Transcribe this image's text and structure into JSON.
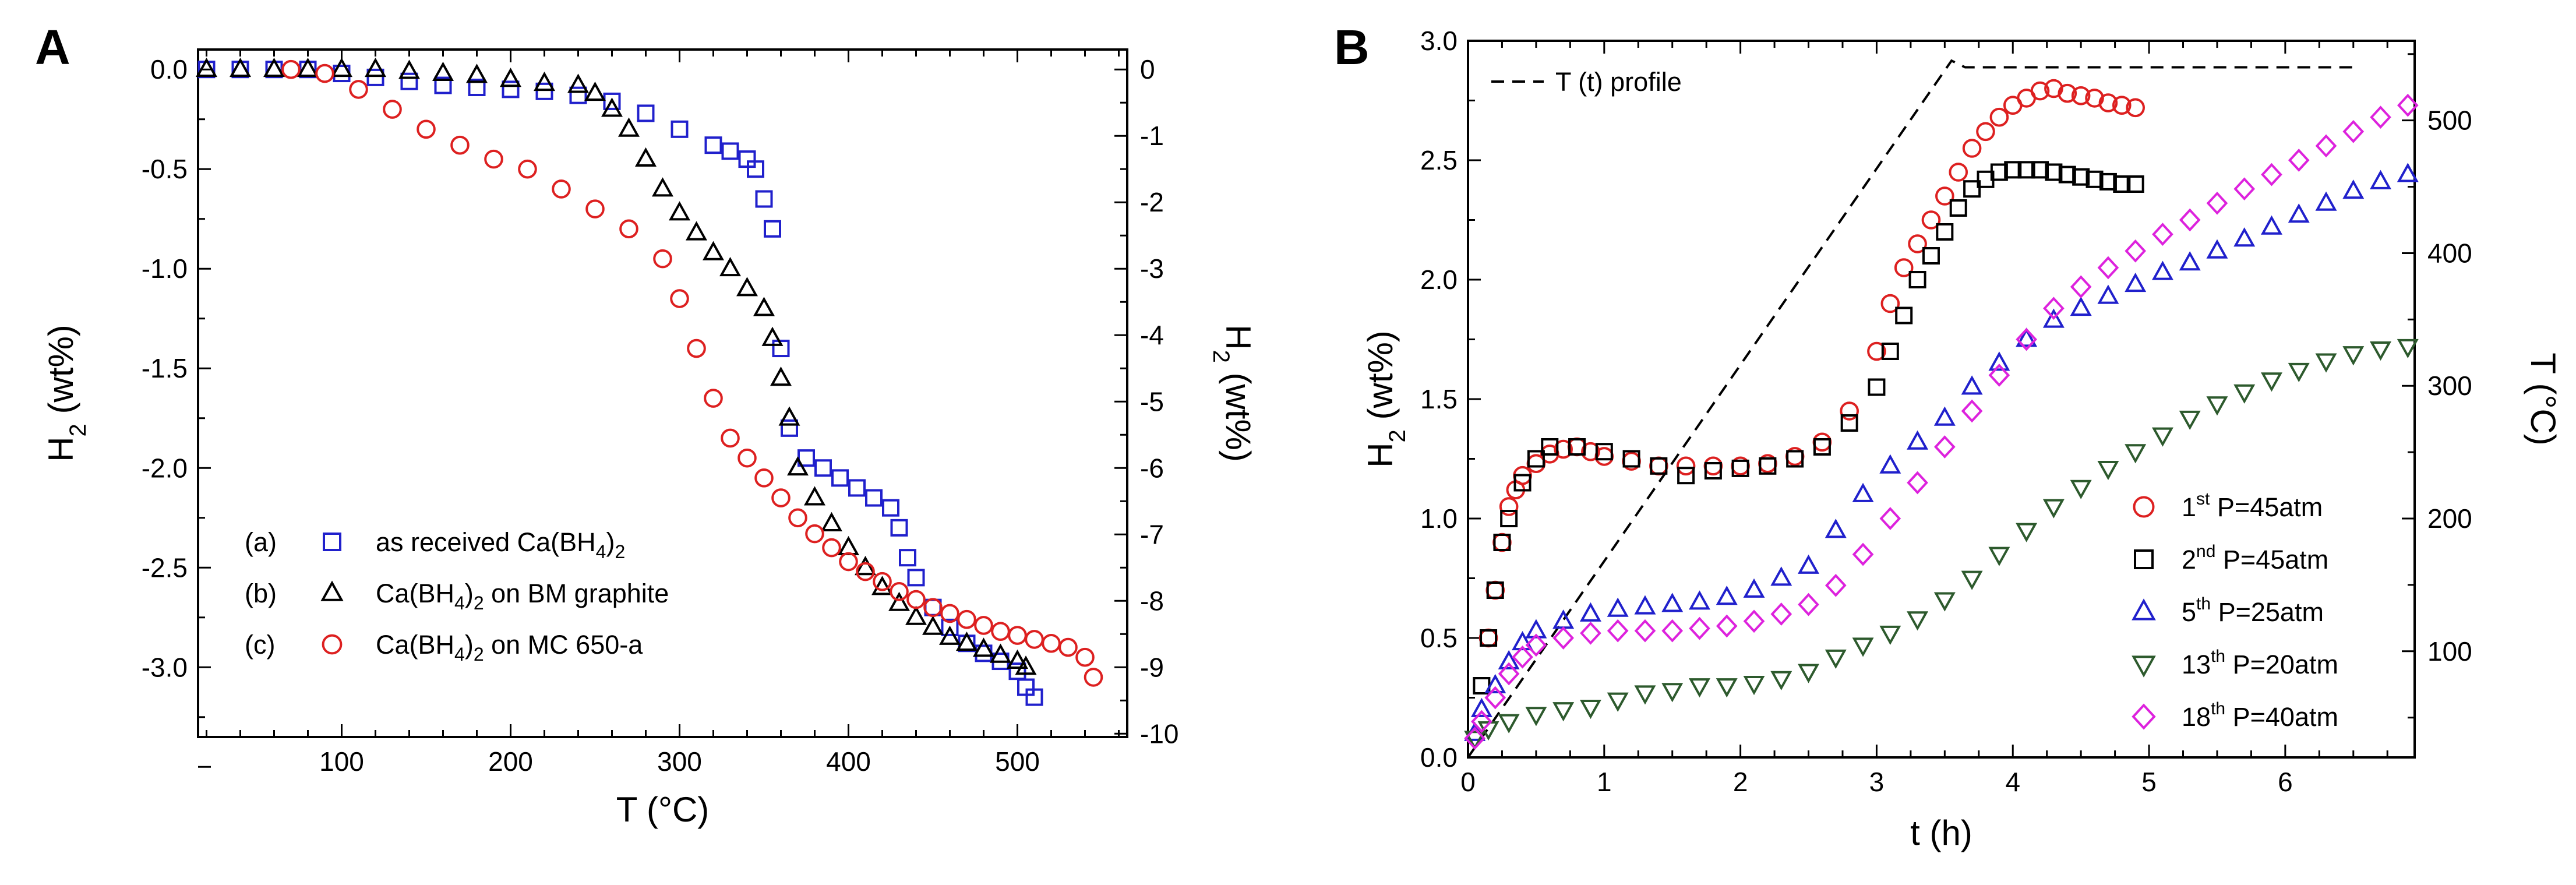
{
  "chart_data": [
    {
      "panel": "A",
      "type": "scatter",
      "xlabel": "T (°C)",
      "ylabel_main": "H",
      "ylabel_sub": "2",
      "ylabel_suffix": " (wt%)",
      "y2label_main": "H",
      "y2label_sub": "2",
      "y2label_suffix": " (wt%)",
      "xlim": [
        15,
        565
      ],
      "ylim": [
        -3.35,
        0.1
      ],
      "y2lim": [
        -10.05,
        0.3
      ],
      "xticks": [
        "100",
        "200",
        "300",
        "400",
        "500"
      ],
      "yticks": [
        "0.0",
        "-0.5",
        "-1.0",
        "-1.5",
        "-2.0",
        "-2.5",
        "-3.0"
      ],
      "y2ticks": [
        "0",
        "-1",
        "-2",
        "-3",
        "-4",
        "-5",
        "-6",
        "-7",
        "-8",
        "-9",
        "-10"
      ],
      "series": [
        {
          "name": "as received Ca(BH4)2",
          "label": "(a)",
          "text_main": "as received Ca(BH",
          "text_sub": "4",
          "text_end": ")",
          "text_sub2": "2",
          "text_rest": "",
          "color": "#2020cc",
          "marker": "square",
          "x": [
            20,
            40,
            60,
            80,
            100,
            120,
            140,
            160,
            180,
            200,
            220,
            240,
            260,
            280,
            300,
            320,
            330,
            340,
            345,
            350,
            355,
            360,
            365,
            375,
            385,
            395,
            405,
            415,
            425,
            430,
            435,
            440,
            450,
            460,
            470,
            480,
            490,
            500,
            505,
            510
          ],
          "y": [
            0.0,
            0.0,
            0.0,
            0.0,
            -0.02,
            -0.04,
            -0.06,
            -0.08,
            -0.09,
            -0.1,
            -0.11,
            -0.13,
            -0.16,
            -0.22,
            -0.3,
            -0.38,
            -0.41,
            -0.45,
            -0.5,
            -0.65,
            -0.8,
            -1.4,
            -1.8,
            -1.95,
            -2.0,
            -2.05,
            -2.1,
            -2.15,
            -2.2,
            -2.3,
            -2.45,
            -2.55,
            -2.7,
            -2.8,
            -2.88,
            -2.93,
            -2.97,
            -3.02,
            -3.1,
            -3.15
          ]
        },
        {
          "name": "Ca(BH4)2 on BM graphite",
          "label": "(b)",
          "text_main": "Ca(BH",
          "text_sub": "4",
          "text_end": ")",
          "text_sub2": "2",
          "text_rest": " on BM graphite",
          "color": "#000000",
          "marker": "triangle",
          "x": [
            20,
            40,
            60,
            80,
            100,
            120,
            140,
            160,
            180,
            200,
            220,
            240,
            250,
            260,
            270,
            280,
            290,
            300,
            310,
            320,
            330,
            340,
            350,
            355,
            360,
            365,
            370,
            380,
            390,
            400,
            410,
            420,
            430,
            440,
            450,
            460,
            470,
            480,
            490,
            500,
            505
          ],
          "y": [
            0.0,
            0.0,
            0.0,
            0.0,
            0.0,
            0.0,
            -0.01,
            -0.02,
            -0.03,
            -0.05,
            -0.07,
            -0.08,
            -0.12,
            -0.2,
            -0.3,
            -0.45,
            -0.6,
            -0.72,
            -0.82,
            -0.92,
            -1.0,
            -1.1,
            -1.2,
            -1.35,
            -1.55,
            -1.75,
            -2.0,
            -2.15,
            -2.28,
            -2.4,
            -2.5,
            -2.6,
            -2.68,
            -2.75,
            -2.8,
            -2.85,
            -2.88,
            -2.91,
            -2.94,
            -2.97,
            -3.0
          ]
        },
        {
          "name": "Ca(BH4)2 on MC 650-a",
          "label": "(c)",
          "text_main": "Ca(BH",
          "text_sub": "4",
          "text_end": ")",
          "text_sub2": "2",
          "text_rest": " on MC 650-a",
          "color": "#dd2020",
          "marker": "circle",
          "x": [
            70,
            90,
            110,
            130,
            150,
            170,
            190,
            210,
            230,
            250,
            270,
            290,
            300,
            310,
            320,
            330,
            340,
            350,
            360,
            370,
            380,
            390,
            400,
            410,
            420,
            430,
            440,
            450,
            460,
            470,
            480,
            490,
            500,
            510,
            520,
            530,
            540,
            545
          ],
          "y": [
            0.0,
            -0.02,
            -0.1,
            -0.2,
            -0.3,
            -0.38,
            -0.45,
            -0.5,
            -0.6,
            -0.7,
            -0.8,
            -0.95,
            -1.15,
            -1.4,
            -1.65,
            -1.85,
            -1.95,
            -2.05,
            -2.15,
            -2.25,
            -2.33,
            -2.4,
            -2.47,
            -2.52,
            -2.57,
            -2.62,
            -2.66,
            -2.7,
            -2.73,
            -2.76,
            -2.79,
            -2.82,
            -2.84,
            -2.86,
            -2.88,
            -2.9,
            -2.95,
            -3.05
          ]
        }
      ]
    },
    {
      "panel": "B",
      "type": "scatter",
      "xlabel": "t (h)",
      "ylabel_main": "H",
      "ylabel_sub": "2",
      "ylabel_suffix": " (wt%)",
      "y2label": "T (°C)",
      "xlim": [
        0,
        6.95
      ],
      "ylim": [
        0.0,
        3.0
      ],
      "y2lim": [
        20,
        560
      ],
      "xticks": [
        "0",
        "1",
        "2",
        "3",
        "4",
        "5",
        "6"
      ],
      "yticks": [
        "0.0",
        "0.5",
        "1.0",
        "1.5",
        "2.0",
        "2.5",
        "3.0"
      ],
      "y2ticks": [
        "100",
        "200",
        "300",
        "400",
        "500"
      ],
      "profile": {
        "name": "T (t) profile",
        "x": [
          0.0,
          3.55,
          3.65,
          6.5
        ],
        "y2": [
          20,
          545,
          540,
          540
        ]
      },
      "series": [
        {
          "name": "1st P=45atm",
          "ord": "1",
          "sup": "st",
          "pressure": " P=45atm",
          "color": "#dd2020",
          "marker": "circle",
          "x": [
            0.15,
            0.2,
            0.25,
            0.3,
            0.35,
            0.4,
            0.5,
            0.6,
            0.7,
            0.8,
            0.9,
            1.0,
            1.2,
            1.4,
            1.6,
            1.8,
            2.0,
            2.2,
            2.4,
            2.6,
            2.8,
            3.0,
            3.1,
            3.2,
            3.3,
            3.4,
            3.5,
            3.6,
            3.7,
            3.8,
            3.9,
            4.0,
            4.1,
            4.2,
            4.3,
            4.4,
            4.5,
            4.6,
            4.7,
            4.8,
            4.9
          ],
          "y": [
            0.5,
            0.7,
            0.9,
            1.05,
            1.12,
            1.18,
            1.23,
            1.27,
            1.29,
            1.3,
            1.28,
            1.26,
            1.24,
            1.22,
            1.22,
            1.22,
            1.22,
            1.23,
            1.26,
            1.32,
            1.45,
            1.7,
            1.9,
            2.05,
            2.15,
            2.25,
            2.35,
            2.45,
            2.55,
            2.62,
            2.68,
            2.73,
            2.76,
            2.79,
            2.8,
            2.78,
            2.77,
            2.76,
            2.74,
            2.73,
            2.72
          ]
        },
        {
          "name": "2nd P=45atm",
          "ord": "2",
          "sup": "nd",
          "pressure": " P=45atm",
          "color": "#000000",
          "marker": "square",
          "x": [
            0.1,
            0.15,
            0.2,
            0.25,
            0.3,
            0.4,
            0.5,
            0.6,
            0.8,
            1.0,
            1.2,
            1.4,
            1.6,
            1.8,
            2.0,
            2.2,
            2.4,
            2.6,
            2.8,
            3.0,
            3.1,
            3.2,
            3.3,
            3.4,
            3.5,
            3.6,
            3.7,
            3.8,
            3.9,
            4.0,
            4.1,
            4.2,
            4.3,
            4.4,
            4.5,
            4.6,
            4.7,
            4.8,
            4.9
          ],
          "y": [
            0.3,
            0.5,
            0.7,
            0.9,
            1.0,
            1.15,
            1.25,
            1.3,
            1.3,
            1.28,
            1.25,
            1.22,
            1.18,
            1.2,
            1.21,
            1.22,
            1.25,
            1.3,
            1.4,
            1.55,
            1.7,
            1.85,
            2.0,
            2.1,
            2.2,
            2.3,
            2.38,
            2.42,
            2.45,
            2.46,
            2.46,
            2.46,
            2.45,
            2.44,
            2.43,
            2.42,
            2.41,
            2.4,
            2.4
          ]
        },
        {
          "name": "5th P=25atm",
          "ord": "5",
          "sup": "th",
          "pressure": " P=25atm",
          "color": "#2020cc",
          "marker": "triangle",
          "x": [
            0.05,
            0.1,
            0.2,
            0.3,
            0.4,
            0.5,
            0.7,
            0.9,
            1.1,
            1.3,
            1.5,
            1.7,
            1.9,
            2.1,
            2.3,
            2.5,
            2.7,
            2.9,
            3.1,
            3.3,
            3.5,
            3.7,
            3.9,
            4.1,
            4.3,
            4.5,
            4.7,
            4.9,
            5.1,
            5.3,
            5.5,
            5.7,
            5.9,
            6.1,
            6.3,
            6.5,
            6.7,
            6.9
          ],
          "y": [
            0.1,
            0.2,
            0.3,
            0.4,
            0.48,
            0.53,
            0.57,
            0.6,
            0.62,
            0.63,
            0.64,
            0.65,
            0.67,
            0.7,
            0.75,
            0.8,
            0.95,
            1.1,
            1.22,
            1.32,
            1.42,
            1.55,
            1.65,
            1.75,
            1.83,
            1.88,
            1.93,
            1.98,
            2.03,
            2.07,
            2.12,
            2.17,
            2.22,
            2.27,
            2.32,
            2.37,
            2.41,
            2.44
          ]
        },
        {
          "name": "13th P=20atm",
          "ord": "13",
          "sup": "th",
          "pressure": " P=20atm",
          "color": "#2d5a2d",
          "marker": "triangle-down",
          "x": [
            0.05,
            0.15,
            0.3,
            0.5,
            0.7,
            0.9,
            1.1,
            1.3,
            1.5,
            1.7,
            1.9,
            2.1,
            2.3,
            2.5,
            2.7,
            2.9,
            3.1,
            3.3,
            3.5,
            3.7,
            3.9,
            4.1,
            4.3,
            4.5,
            4.7,
            4.9,
            5.1,
            5.3,
            5.5,
            5.7,
            5.9,
            6.1,
            6.3,
            6.5,
            6.7,
            6.9
          ],
          "y": [
            0.08,
            0.12,
            0.15,
            0.18,
            0.2,
            0.21,
            0.24,
            0.27,
            0.28,
            0.3,
            0.3,
            0.31,
            0.33,
            0.36,
            0.42,
            0.47,
            0.52,
            0.58,
            0.66,
            0.75,
            0.85,
            0.95,
            1.05,
            1.13,
            1.21,
            1.28,
            1.35,
            1.42,
            1.48,
            1.53,
            1.58,
            1.62,
            1.66,
            1.69,
            1.71,
            1.72
          ]
        },
        {
          "name": "18th P=40atm",
          "ord": "18",
          "sup": "th",
          "pressure": " P=40atm",
          "color": "#dd22dd",
          "marker": "diamond",
          "x": [
            0.05,
            0.1,
            0.2,
            0.3,
            0.4,
            0.5,
            0.7,
            0.9,
            1.1,
            1.3,
            1.5,
            1.7,
            1.9,
            2.1,
            2.3,
            2.5,
            2.7,
            2.9,
            3.1,
            3.3,
            3.5,
            3.7,
            3.9,
            4.1,
            4.3,
            4.5,
            4.7,
            4.9,
            5.1,
            5.3,
            5.5,
            5.7,
            5.9,
            6.1,
            6.3,
            6.5,
            6.7,
            6.9
          ],
          "y": [
            0.08,
            0.15,
            0.25,
            0.35,
            0.42,
            0.47,
            0.5,
            0.52,
            0.53,
            0.53,
            0.53,
            0.54,
            0.55,
            0.57,
            0.6,
            0.64,
            0.72,
            0.85,
            1.0,
            1.15,
            1.3,
            1.45,
            1.6,
            1.75,
            1.88,
            1.97,
            2.05,
            2.12,
            2.19,
            2.25,
            2.32,
            2.38,
            2.44,
            2.5,
            2.56,
            2.62,
            2.68,
            2.73
          ]
        }
      ]
    }
  ]
}
